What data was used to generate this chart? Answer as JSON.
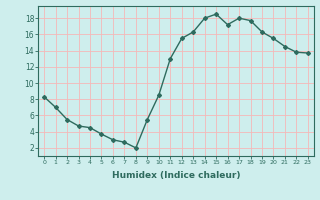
{
  "x": [
    0,
    1,
    2,
    3,
    4,
    5,
    6,
    7,
    8,
    9,
    10,
    11,
    12,
    13,
    14,
    15,
    16,
    17,
    18,
    19,
    20,
    21,
    22,
    23
  ],
  "y": [
    8.3,
    7.0,
    5.5,
    4.7,
    4.5,
    3.7,
    3.0,
    2.7,
    2.0,
    5.5,
    8.5,
    13.0,
    15.5,
    16.3,
    18.0,
    18.5,
    17.2,
    18.0,
    17.7,
    16.3,
    15.5,
    14.5,
    13.8,
    13.7
  ],
  "xlabel": "Humidex (Indice chaleur)",
  "line_color": "#2e6b5e",
  "marker": "D",
  "marker_size": 2.0,
  "line_width": 1.0,
  "bg_color": "#ceeeed",
  "grid_color": "#f5b8b8",
  "tick_color": "#2e6b5e",
  "label_color": "#2e6b5e",
  "xlim": [
    -0.5,
    23.5
  ],
  "ylim": [
    1.0,
    19.5
  ],
  "yticks": [
    2,
    4,
    6,
    8,
    10,
    12,
    14,
    16,
    18
  ],
  "xticks": [
    0,
    1,
    2,
    3,
    4,
    5,
    6,
    7,
    8,
    9,
    10,
    11,
    12,
    13,
    14,
    15,
    16,
    17,
    18,
    19,
    20,
    21,
    22,
    23
  ],
  "xtick_labels": [
    "0",
    "1",
    "2",
    "3",
    "4",
    "5",
    "6",
    "7",
    "8",
    "9",
    "10",
    "11",
    "12",
    "13",
    "14",
    "15",
    "16",
    "17",
    "18",
    "19",
    "20",
    "21",
    "22",
    "23"
  ]
}
